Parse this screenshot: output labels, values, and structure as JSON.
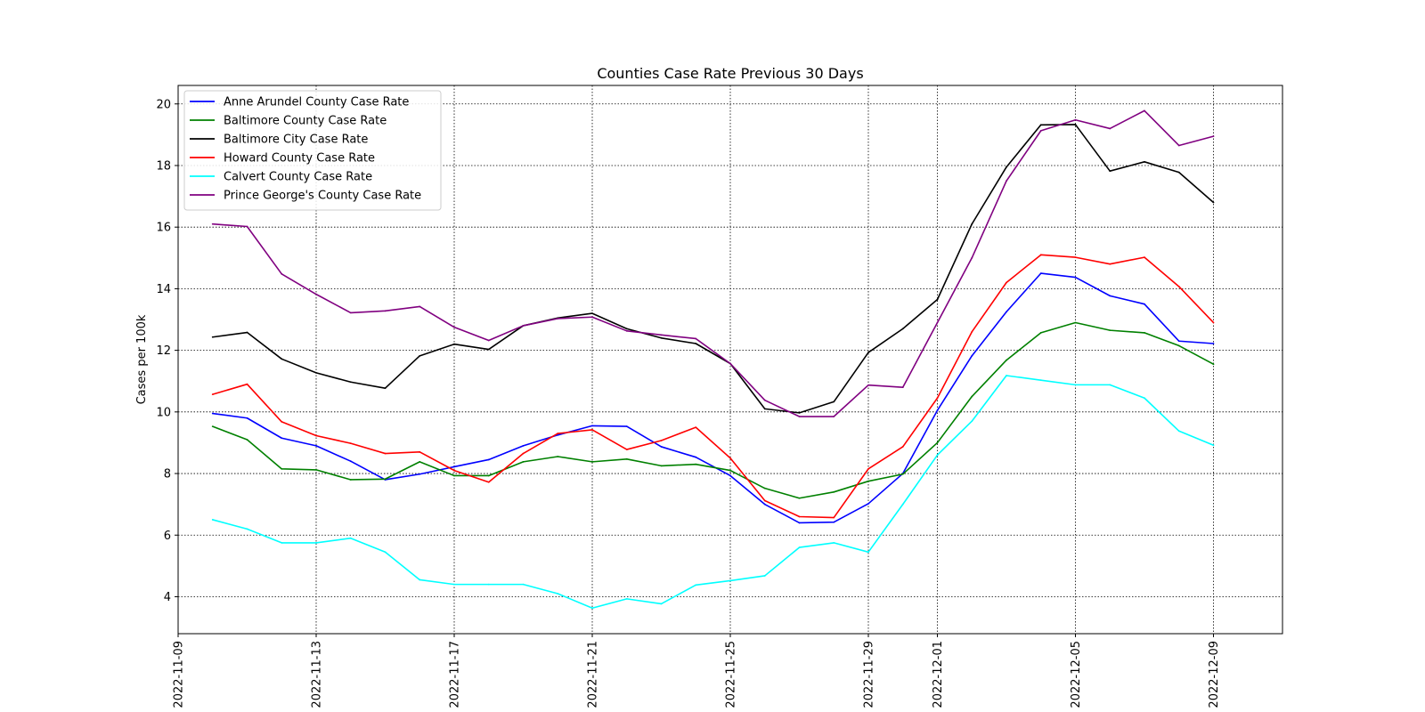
{
  "chart_data": {
    "type": "line",
    "title": "Counties Case Rate Previous 30 Days",
    "xlabel": "",
    "ylabel": "Cases per 100k",
    "x_tick_labels": [
      "2022-11-09",
      "2022-11-13",
      "2022-11-17",
      "2022-11-21",
      "2022-11-25",
      "2022-11-29",
      "2022-12-01",
      "2022-12-05",
      "2022-12-09"
    ],
    "y_ticks": [
      4,
      6,
      8,
      10,
      12,
      14,
      16,
      18,
      20
    ],
    "xlim": [
      "2022-11-09",
      "2022-12-11"
    ],
    "ylim": [
      2.8,
      20.6
    ],
    "grid": true,
    "legend_position": "upper-left",
    "x": [
      "2022-11-10",
      "2022-11-11",
      "2022-11-12",
      "2022-11-13",
      "2022-11-14",
      "2022-11-15",
      "2022-11-16",
      "2022-11-17",
      "2022-11-18",
      "2022-11-19",
      "2022-11-20",
      "2022-11-21",
      "2022-11-22",
      "2022-11-23",
      "2022-11-24",
      "2022-11-25",
      "2022-11-26",
      "2022-11-27",
      "2022-11-28",
      "2022-11-29",
      "2022-11-30",
      "2022-12-01",
      "2022-12-02",
      "2022-12-03",
      "2022-12-04",
      "2022-12-05",
      "2022-12-06",
      "2022-12-07",
      "2022-12-08",
      "2022-12-09"
    ],
    "series": [
      {
        "name": "Anne Arundel County Case Rate",
        "color": "#0000ff",
        "values": [
          9.95,
          9.8,
          9.15,
          8.9,
          8.4,
          7.8,
          7.98,
          8.22,
          8.45,
          8.9,
          9.25,
          9.55,
          9.53,
          8.87,
          8.53,
          7.93,
          7.0,
          6.4,
          6.42,
          7.02,
          8.0,
          10.05,
          11.82,
          13.25,
          14.5,
          14.37,
          13.77,
          13.5,
          12.3,
          12.22
        ]
      },
      {
        "name": "Baltimore County Case Rate",
        "color": "#008000",
        "values": [
          9.53,
          9.1,
          8.15,
          8.12,
          7.8,
          7.82,
          8.38,
          7.93,
          7.93,
          8.38,
          8.55,
          8.38,
          8.47,
          8.25,
          8.3,
          8.1,
          7.52,
          7.2,
          7.4,
          7.75,
          7.98,
          9.0,
          10.5,
          11.68,
          12.57,
          12.9,
          12.65,
          12.57,
          12.15,
          11.55
        ]
      },
      {
        "name": "Baltimore City Case Rate",
        "color": "#000000",
        "values": [
          12.43,
          12.58,
          11.72,
          11.27,
          10.97,
          10.77,
          11.82,
          12.2,
          12.03,
          12.8,
          13.05,
          13.2,
          12.7,
          12.4,
          12.22,
          11.57,
          10.1,
          9.97,
          10.33,
          11.93,
          12.7,
          13.65,
          16.1,
          17.95,
          19.32,
          19.33,
          17.82,
          18.12,
          17.78,
          16.8
        ]
      },
      {
        "name": "Howard County Case Rate",
        "color": "#ff0000",
        "values": [
          10.57,
          10.9,
          9.68,
          9.23,
          8.98,
          8.65,
          8.7,
          8.1,
          7.72,
          8.65,
          9.3,
          9.42,
          8.78,
          9.07,
          9.5,
          8.5,
          7.12,
          6.6,
          6.57,
          8.15,
          8.87,
          10.45,
          12.6,
          14.2,
          15.1,
          15.02,
          14.8,
          15.02,
          14.07,
          12.9
        ]
      },
      {
        "name": "Calvert County Case Rate",
        "color": "#00ffff",
        "values": [
          6.5,
          6.2,
          5.75,
          5.75,
          5.9,
          5.45,
          4.55,
          4.4,
          4.4,
          4.4,
          4.1,
          3.63,
          3.93,
          3.77,
          4.38,
          4.52,
          4.68,
          5.6,
          5.75,
          5.45,
          7.0,
          8.6,
          9.7,
          11.18,
          11.03,
          10.88,
          10.88,
          10.45,
          9.38,
          8.92
        ]
      },
      {
        "name": "Prince George's County Case Rate",
        "color": "#800080",
        "values": [
          16.1,
          16.02,
          14.48,
          13.82,
          13.22,
          13.28,
          13.42,
          12.75,
          12.32,
          12.8,
          13.03,
          13.08,
          12.63,
          12.5,
          12.38,
          11.57,
          10.38,
          9.85,
          9.85,
          10.87,
          10.8,
          12.9,
          15.0,
          17.5,
          19.13,
          19.48,
          19.2,
          19.78,
          18.65,
          18.95
        ]
      }
    ]
  }
}
